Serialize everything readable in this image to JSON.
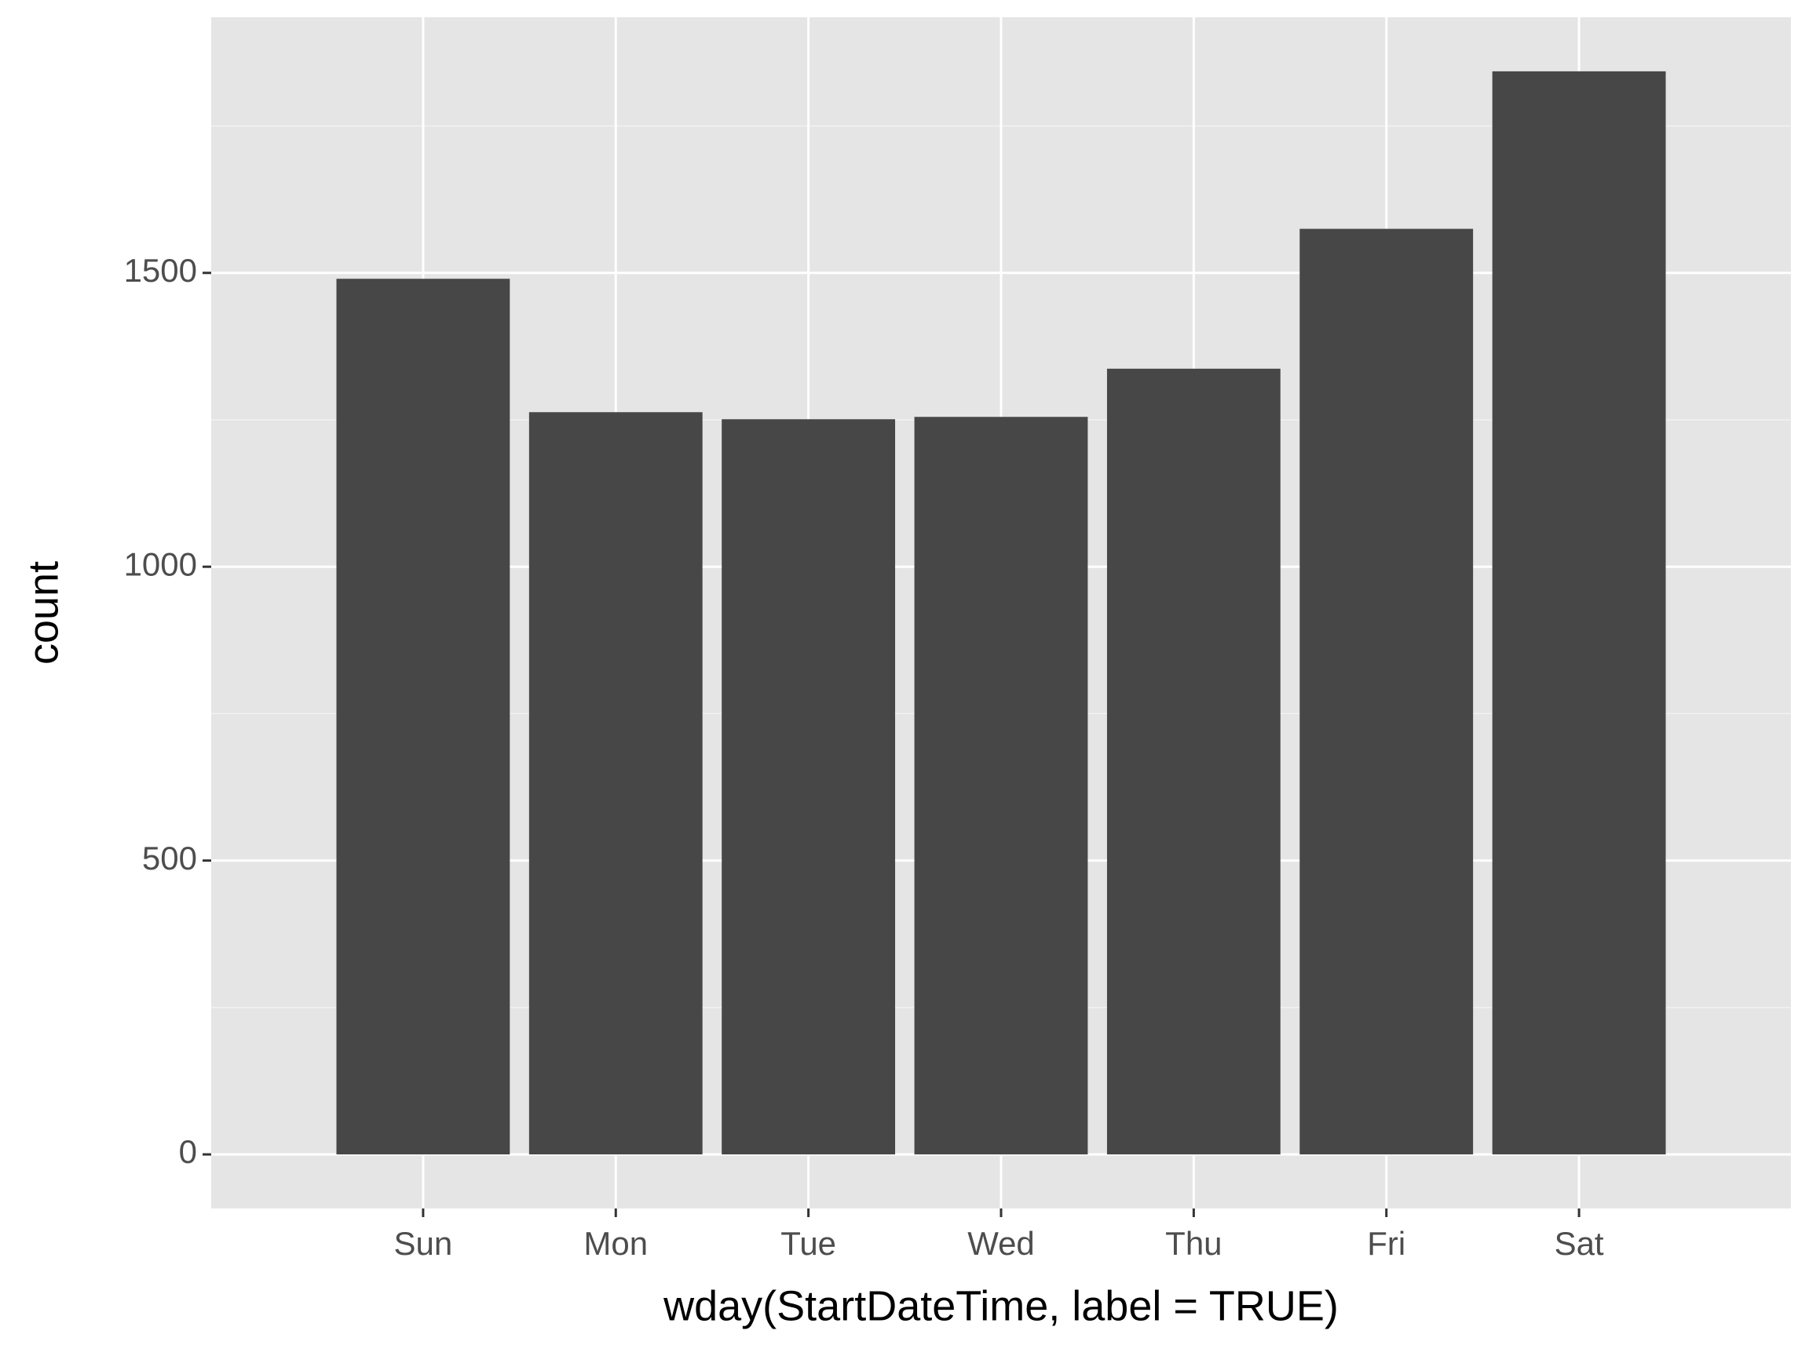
{
  "chart_data": {
    "type": "bar",
    "x_label": "wday(StartDateTime, label = TRUE)",
    "y_label": "count",
    "categories": [
      "Sun",
      "Mon",
      "Tue",
      "Wed",
      "Thu",
      "Fri",
      "Sat"
    ],
    "values": [
      1490,
      1263,
      1251,
      1255,
      1337,
      1575,
      1843
    ],
    "color": "#474747",
    "ylim": [
      -92,
      1935
    ],
    "yticks": [
      0,
      500,
      1000,
      1500
    ],
    "y_minor_ticks": [
      250,
      750,
      1250,
      1750
    ],
    "grid": true
  }
}
